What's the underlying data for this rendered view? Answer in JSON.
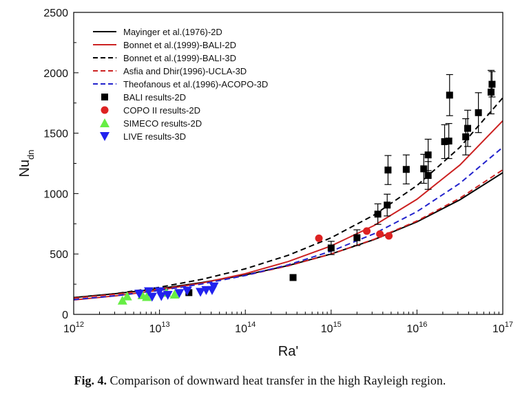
{
  "chart_data": {
    "type": "scatter",
    "xlabel": "Ra'",
    "ylabel_main": "Nu",
    "ylabel_sub": "dn",
    "x_scale": "log",
    "xlim": [
      1000000000000.0,
      1e+17
    ],
    "ylim": [
      0,
      2500
    ],
    "x_ticks": [
      {
        "value": 1000000000000.0,
        "base": "10",
        "exp": "12"
      },
      {
        "value": 10000000000000.0,
        "base": "10",
        "exp": "13"
      },
      {
        "value": 100000000000000.0,
        "base": "10",
        "exp": "14"
      },
      {
        "value": 1000000000000000.0,
        "base": "10",
        "exp": "15"
      },
      {
        "value": 1e+16,
        "base": "10",
        "exp": "16"
      },
      {
        "value": 1e+17,
        "base": "10",
        "exp": "17"
      }
    ],
    "y_ticks": [
      0,
      500,
      1000,
      1500,
      2000,
      2500
    ],
    "grid": false,
    "legend_position": "top-left",
    "correlations": [
      {
        "name": "Mayinger et al.(1976)-2D",
        "color": "#000000",
        "dash": "solid",
        "points": [
          [
            1000000000000.0,
            139.3
          ],
          [
            3160000000000.0,
            172.3
          ],
          [
            10000000000000.0,
            213.3
          ],
          [
            31600000000000.0,
            263.9
          ],
          [
            100000000000000.0,
            326.6
          ],
          [
            316000000000000.0,
            404.2
          ],
          [
            1000000000000000.0,
            500.2
          ],
          [
            3160000000000000.0,
            619
          ],
          [
            1e+16,
            766
          ],
          [
            3.16e+16,
            948
          ],
          [
            1e+17,
            1173
          ]
        ]
      },
      {
        "name": "Bonnet et al.(1999)-BALI-2D",
        "color": "#cc2222",
        "dash": "solid",
        "points": [
          [
            1000000000000.0,
            119.3
          ],
          [
            3160000000000.0,
            154.7
          ],
          [
            10000000000000.0,
            200.6
          ],
          [
            31600000000000.0,
            260.1
          ],
          [
            100000000000000.0,
            337.2
          ],
          [
            316000000000000.0,
            437.3
          ],
          [
            1000000000000000.0,
            567
          ],
          [
            3160000000000000.0,
            735.2
          ],
          [
            1e+16,
            953.2
          ],
          [
            3.16e+16,
            1236
          ],
          [
            1e+17,
            1603
          ]
        ]
      },
      {
        "name": "Bonnet et al.(1999)-BALI-3D",
        "color": "#000000",
        "dash": "dashed",
        "points": [
          [
            1000000000000.0,
            133.5
          ],
          [
            3160000000000.0,
            173.1
          ],
          [
            10000000000000.0,
            224.4
          ],
          [
            31600000000000.0,
            291
          ],
          [
            100000000000000.0,
            377.3
          ],
          [
            316000000000000.0,
            489.3
          ],
          [
            1000000000000000.0,
            634.4
          ],
          [
            3160000000000000.0,
            822.6
          ],
          [
            1e+16,
            1066.6
          ],
          [
            3.16e+16,
            1383
          ],
          [
            1e+17,
            1793
          ]
        ]
      },
      {
        "name": "Asfia and Dhir(1996)-UCLA-3D",
        "color": "#cc2222",
        "dash": "dashed",
        "points": [
          [
            1000000000000.0,
            134.8
          ],
          [
            3160000000000.0,
            167.7
          ],
          [
            10000000000000.0,
            208.6
          ],
          [
            31600000000000.0,
            259.5
          ],
          [
            100000000000000.0,
            322.8
          ],
          [
            316000000000000.0,
            401.6
          ],
          [
            1000000000000000.0,
            499.6
          ],
          [
            3160000000000000.0,
            621.5
          ],
          [
            1e+16,
            773.2
          ],
          [
            3.16e+16,
            961.9
          ],
          [
            1e+17,
            1196.6
          ]
        ]
      },
      {
        "name": "Theofanous et al.(1996)-ACOPO-3D",
        "color": "#2222cc",
        "dash": "dashed",
        "points": [
          [
            1000000000000.0,
            121.7
          ],
          [
            3160000000000.0,
            155.2
          ],
          [
            10000000000000.0,
            197.9
          ],
          [
            31600000000000.0,
            252.4
          ],
          [
            100000000000000.0,
            321.8
          ],
          [
            316000000000000.0,
            410.3
          ],
          [
            1000000000000000.0,
            523.2
          ],
          [
            3160000000000000.0,
            667.2
          ],
          [
            1e+16,
            850.8
          ],
          [
            3.16e+16,
            1084.9
          ],
          [
            1e+17,
            1383.4
          ]
        ]
      }
    ],
    "series": [
      {
        "name": "BALI results-2D",
        "marker": "square",
        "color": "#000000",
        "points": [
          {
            "x": 22000000000000.0,
            "y": 180
          },
          {
            "x": 360000000000000.0,
            "y": 305
          },
          {
            "x": 1000000000000000.0,
            "y": 550,
            "err": 55
          },
          {
            "x": 2000000000000000.0,
            "y": 635,
            "err": 65
          },
          {
            "x": 3500000000000000.0,
            "y": 830,
            "err": 85
          },
          {
            "x": 4500000000000000.0,
            "y": 905,
            "err": 90
          },
          {
            "x": 4600000000000000.0,
            "y": 1195,
            "err": 120
          },
          {
            "x": 7500000000000000.0,
            "y": 1200,
            "err": 120
          },
          {
            "x": 1.2e+16,
            "y": 1205,
            "err": 120
          },
          {
            "x": 1.35e+16,
            "y": 1150,
            "err": 115
          },
          {
            "x": 1.35e+16,
            "y": 1320,
            "err": 130
          },
          {
            "x": 2.1e+16,
            "y": 1430,
            "err": 140
          },
          {
            "x": 2.35e+16,
            "y": 1435,
            "err": 145
          },
          {
            "x": 2.4e+16,
            "y": 1815,
            "err": 170
          },
          {
            "x": 3.7e+16,
            "y": 1470,
            "err": 150
          },
          {
            "x": 3.9e+16,
            "y": 1540,
            "err": 150
          },
          {
            "x": 5.2e+16,
            "y": 1670,
            "err": 165
          },
          {
            "x": 7.3e+16,
            "y": 1840,
            "err": 180
          },
          {
            "x": 7.5e+16,
            "y": 1905,
            "err": 105
          }
        ]
      },
      {
        "name": "COPO II results-2D",
        "marker": "circle",
        "color": "#dd2222",
        "points": [
          {
            "x": 720000000000000.0,
            "y": 630
          },
          {
            "x": 2600000000000000.0,
            "y": 690
          },
          {
            "x": 3700000000000000.0,
            "y": 665
          },
          {
            "x": 4700000000000000.0,
            "y": 650
          }
        ]
      },
      {
        "name": "SIMECO results-2D",
        "marker": "triangle-up",
        "color": "#66ee44",
        "points": [
          {
            "x": 3700000000000.0,
            "y": 115
          },
          {
            "x": 4200000000000.0,
            "y": 150
          },
          {
            "x": 6300000000000.0,
            "y": 160
          },
          {
            "x": 7100000000000.0,
            "y": 145
          },
          {
            "x": 12000000000000.0,
            "y": 180
          },
          {
            "x": 15000000000000.0,
            "y": 165
          }
        ]
      },
      {
        "name": "LIVE results-3D",
        "marker": "triangle-down",
        "color": "#2222ee",
        "points": [
          {
            "x": 5800000000000.0,
            "y": 170
          },
          {
            "x": 7500000000000.0,
            "y": 190
          },
          {
            "x": 8200000000000.0,
            "y": 145
          },
          {
            "x": 10000000000000.0,
            "y": 190
          },
          {
            "x": 10500000000000.0,
            "y": 150
          },
          {
            "x": 12500000000000.0,
            "y": 160
          },
          {
            "x": 17000000000000.0,
            "y": 175
          },
          {
            "x": 21000000000000.0,
            "y": 195
          },
          {
            "x": 30000000000000.0,
            "y": 185
          },
          {
            "x": 35000000000000.0,
            "y": 200
          },
          {
            "x": 41000000000000.0,
            "y": 200
          },
          {
            "x": 43000000000000.0,
            "y": 230
          }
        ]
      }
    ]
  },
  "caption": {
    "label": "Fig. 4.",
    "text": " Comparison of downward heat transfer in the high Rayleigh region."
  }
}
